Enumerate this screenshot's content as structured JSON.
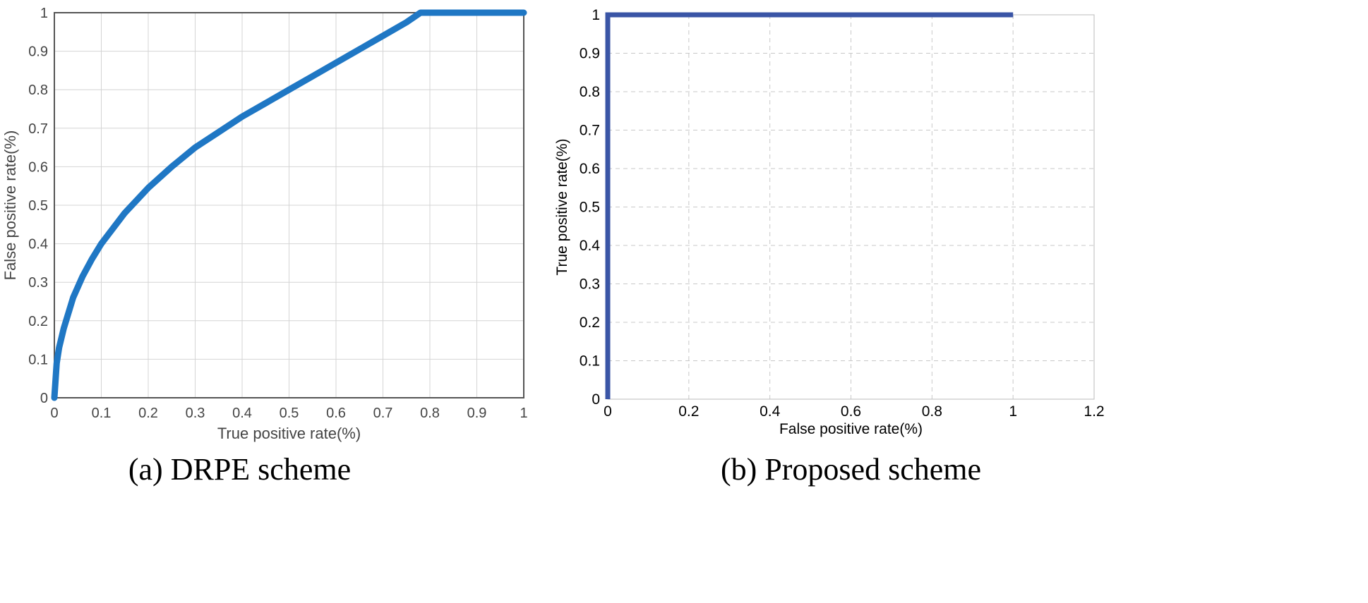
{
  "chart_data": [
    {
      "type": "line",
      "caption": "(a) DRPE scheme",
      "xlabel": "True positive rate(%)",
      "ylabel": "False positive rate(%)",
      "xlim": [
        0,
        1
      ],
      "ylim": [
        0,
        1
      ],
      "xticks": [
        "0",
        "0.1",
        "0.2",
        "0.3",
        "0.4",
        "0.5",
        "0.6",
        "0.7",
        "0.8",
        "0.9",
        "1"
      ],
      "yticks": [
        "0",
        "0.1",
        "0.2",
        "0.3",
        "0.4",
        "0.5",
        "0.6",
        "0.7",
        "0.8",
        "0.9",
        "1"
      ],
      "grid": "solid",
      "series": [
        {
          "color": "#1f77c4",
          "x": [
            0,
            0.005,
            0.01,
            0.02,
            0.04,
            0.06,
            0.08,
            0.1,
            0.15,
            0.2,
            0.25,
            0.3,
            0.35,
            0.4,
            0.45,
            0.5,
            0.55,
            0.6,
            0.65,
            0.7,
            0.75,
            0.78,
            0.8,
            0.85,
            0.9,
            0.95,
            1.0
          ],
          "y": [
            0,
            0.09,
            0.13,
            0.18,
            0.26,
            0.315,
            0.36,
            0.4,
            0.48,
            0.545,
            0.6,
            0.65,
            0.69,
            0.73,
            0.765,
            0.8,
            0.835,
            0.87,
            0.905,
            0.94,
            0.975,
            1.0,
            1.0,
            1.0,
            1.0,
            1.0,
            1.0
          ]
        }
      ]
    },
    {
      "type": "line",
      "caption": "(b)  Proposed  scheme",
      "xlabel": "False positive rate(%)",
      "ylabel": "True positive rate(%)",
      "xlim": [
        0,
        1.2
      ],
      "ylim": [
        0,
        1
      ],
      "xticks": [
        "0",
        "0.2",
        "0.4",
        "0.6",
        "0.8",
        "1",
        "1.2"
      ],
      "yticks": [
        "0",
        "0.1",
        "0.2",
        "0.3",
        "0.4",
        "0.5",
        "0.6",
        "0.7",
        "0.8",
        "0.9",
        "1"
      ],
      "grid": "dashed",
      "series": [
        {
          "color": "#3a55a6",
          "x": [
            0,
            0,
            1
          ],
          "y": [
            0,
            1,
            1
          ]
        }
      ]
    }
  ]
}
